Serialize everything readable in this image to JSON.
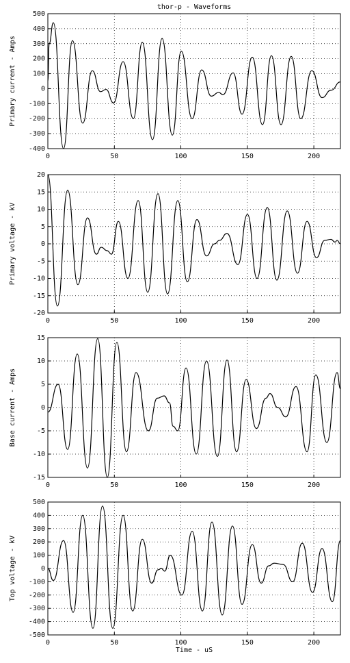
{
  "chart_data": [
    {
      "type": "line",
      "title": "thor-p - Waveforms",
      "ylabel": "Primary current - Amps",
      "xlim": [
        0,
        220
      ],
      "xticks": [
        0,
        50,
        100,
        150,
        200
      ],
      "ylim": [
        -400,
        500
      ],
      "yticks": [
        -400,
        -300,
        -200,
        -100,
        0,
        100,
        200,
        300,
        400,
        500
      ],
      "grid": true,
      "color": "#000000",
      "x": [
        0,
        1,
        4.1,
        11.8,
        18.5,
        26.2,
        33.4,
        39.6,
        43.7,
        49.4,
        56.6,
        64.3,
        71,
        78.7,
        85.9,
        93.6,
        100.3,
        108.5,
        115.7,
        122.9,
        128.5,
        131.6,
        139.3,
        146,
        153.7,
        161.4,
        168.1,
        175.3,
        183,
        190.2,
        198.5,
        206.2,
        213,
        220
      ],
      "values": [
        50,
        300,
        440,
        -400,
        320,
        -230,
        120,
        -20,
        -5,
        -95,
        180,
        -200,
        310,
        -340,
        335,
        -310,
        250,
        -200,
        125,
        -50,
        -25,
        -40,
        105,
        -170,
        210,
        -240,
        220,
        -240,
        215,
        -200,
        120,
        -60,
        -10,
        45
      ]
    },
    {
      "type": "line",
      "ylabel": "Primary voltage - kV",
      "xlim": [
        0,
        220
      ],
      "xticks": [
        0,
        50,
        100,
        150,
        200
      ],
      "ylim": [
        -20,
        20
      ],
      "yticks": [
        -20,
        -15,
        -10,
        -5,
        0,
        5,
        10,
        15,
        20
      ],
      "grid": true,
      "color": "#000000",
      "x": [
        0,
        7.2,
        14.9,
        22.6,
        29.8,
        36.5,
        40.1,
        44.7,
        47.8,
        53,
        60.2,
        67.9,
        75.1,
        82.8,
        90,
        97.7,
        104.9,
        112.1,
        119.3,
        125.4,
        129,
        134.7,
        142.9,
        150.1,
        157.3,
        165,
        172.2,
        180,
        187.7,
        194.9,
        202,
        208.2,
        212.9,
        216,
        217.5,
        220
      ],
      "values": [
        20,
        -18,
        15.5,
        -11.8,
        7.5,
        -3,
        -1,
        -2,
        -3,
        6.5,
        -10,
        12.5,
        -14,
        14.5,
        -14.5,
        12.5,
        -11,
        7,
        -3.5,
        0,
        1,
        3,
        -6,
        8.5,
        -10,
        10.5,
        -10.5,
        9.5,
        -8.5,
        6.5,
        -4,
        1,
        1.3,
        0.5,
        1,
        0
      ]
    },
    {
      "type": "line",
      "ylabel": "Base current - Amps",
      "xlim": [
        0,
        220
      ],
      "xticks": [
        0,
        50,
        100,
        150,
        200
      ],
      "ylim": [
        -15,
        15
      ],
      "yticks": [
        -15,
        -10,
        -5,
        0,
        5,
        10,
        15
      ],
      "grid": true,
      "color": "#000000",
      "x": [
        0,
        7.7,
        14.9,
        22.1,
        29.8,
        37.5,
        44.7,
        51.9,
        59.1,
        66.3,
        75.6,
        82.3,
        87.4,
        91.5,
        94.1,
        97.7,
        103.9,
        111.6,
        119.3,
        127.5,
        134.7,
        141.9,
        149.1,
        156.8,
        164,
        167,
        172.8,
        178.9,
        186.6,
        194.9,
        201.5,
        209.8,
        217.5,
        220
      ],
      "values": [
        -1,
        5,
        -9,
        11.5,
        -13,
        14.8,
        -15,
        14,
        -9.5,
        7.5,
        -5,
        2,
        2.5,
        1,
        -4,
        -5,
        8.5,
        -10,
        10,
        -10.5,
        10.2,
        -9.5,
        6,
        -4.5,
        2,
        3,
        0,
        -2,
        4.5,
        -9.5,
        7,
        -7.5,
        7.5,
        4
      ]
    },
    {
      "type": "line",
      "ylabel": "Top voltage - kV",
      "xlabel": "Time - uS",
      "xlim": [
        0,
        220
      ],
      "xticks": [
        0,
        50,
        100,
        150,
        200
      ],
      "ylim": [
        -500,
        500
      ],
      "yticks": [
        -500,
        -400,
        -300,
        -200,
        -100,
        0,
        100,
        200,
        300,
        400,
        500
      ],
      "grid": true,
      "color": "#000000",
      "x": [
        0,
        4.1,
        11.8,
        19,
        26.2,
        33.9,
        41.1,
        48.8,
        56.6,
        63.8,
        71,
        78.1,
        82.8,
        85.3,
        87.9,
        92,
        100.8,
        108.5,
        116.2,
        123.4,
        131.1,
        138.8,
        146,
        153.7,
        160.4,
        166.1,
        170.2,
        176.9,
        184.1,
        191.3,
        199,
        206.2,
        213.9,
        220
      ],
      "values": [
        0,
        -90,
        210,
        -330,
        400,
        -450,
        470,
        -450,
        400,
        -320,
        220,
        -110,
        -10,
        0,
        -20,
        100,
        -200,
        280,
        -320,
        350,
        -350,
        320,
        -270,
        180,
        -110,
        20,
        40,
        30,
        -100,
        190,
        -180,
        150,
        -250,
        210
      ]
    }
  ]
}
